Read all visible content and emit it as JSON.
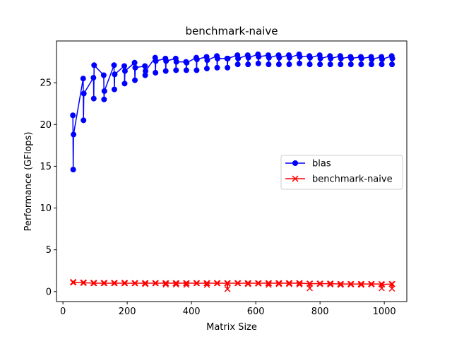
{
  "chart_data": {
    "type": "line",
    "title": "benchmark-naive",
    "xlabel": "Matrix Size",
    "ylabel": "Performance (GFlops)",
    "xlim": [
      -20,
      1070
    ],
    "ylim": [
      -1.2,
      30
    ],
    "xticks": [
      0,
      200,
      400,
      600,
      800,
      1000
    ],
    "yticks": [
      0,
      5,
      10,
      15,
      20,
      25
    ],
    "grid": false,
    "legend_position": "center-right",
    "series": [
      {
        "name": "blas",
        "color": "#0000ff",
        "marker": "circle",
        "x": [
          31,
          32,
          33,
          63,
          64,
          65,
          95,
          96,
          97,
          127,
          128,
          129,
          159,
          160,
          161,
          191,
          192,
          193,
          223,
          224,
          225,
          255,
          256,
          257,
          287,
          288,
          289,
          319,
          320,
          321,
          351,
          352,
          353,
          383,
          384,
          385,
          415,
          416,
          417,
          447,
          448,
          449,
          479,
          480,
          481,
          511,
          512,
          513,
          543,
          544,
          545,
          575,
          576,
          577,
          607,
          608,
          609,
          639,
          640,
          641,
          671,
          672,
          673,
          703,
          704,
          705,
          735,
          736,
          737,
          767,
          768,
          769,
          799,
          800,
          801,
          831,
          832,
          833,
          863,
          864,
          865,
          895,
          896,
          897,
          927,
          928,
          929,
          959,
          960,
          961,
          991,
          992,
          993,
          1023,
          1024,
          1025
        ],
        "y": [
          21.1,
          14.6,
          18.8,
          25.5,
          20.5,
          23.7,
          25.6,
          23.1,
          27.1,
          25.9,
          23.0,
          24.0,
          27.1,
          24.2,
          26.0,
          27.0,
          24.9,
          26.4,
          27.4,
          25.3,
          26.8,
          27.0,
          25.9,
          26.4,
          28.0,
          26.2,
          27.6,
          27.9,
          26.4,
          27.6,
          27.9,
          26.5,
          27.5,
          27.5,
          26.5,
          27.4,
          28.0,
          26.5,
          27.8,
          28.1,
          26.7,
          27.7,
          28.2,
          26.8,
          27.9,
          27.9,
          26.8,
          27.9,
          28.3,
          27.2,
          27.9,
          28.3,
          27.2,
          28.0,
          28.4,
          27.3,
          28.1,
          28.3,
          27.2,
          28.0,
          28.3,
          27.2,
          28.0,
          28.3,
          27.2,
          28.0,
          28.4,
          27.3,
          28.1,
          28.2,
          27.2,
          28.0,
          28.3,
          27.2,
          27.9,
          28.2,
          27.2,
          27.9,
          28.2,
          27.2,
          27.9,
          28.1,
          27.2,
          27.9,
          28.1,
          27.2,
          27.9,
          28.1,
          27.2,
          27.8,
          28.1,
          27.2,
          27.8,
          28.2,
          27.2,
          27.9
        ]
      },
      {
        "name": "benchmark-naive",
        "color": "#ff0000",
        "marker": "x",
        "x": [
          31,
          32,
          33,
          63,
          64,
          65,
          95,
          96,
          97,
          127,
          128,
          129,
          159,
          160,
          161,
          191,
          192,
          193,
          223,
          224,
          225,
          255,
          256,
          257,
          287,
          288,
          289,
          319,
          320,
          321,
          351,
          352,
          353,
          383,
          384,
          385,
          415,
          416,
          417,
          447,
          448,
          449,
          479,
          480,
          481,
          511,
          512,
          513,
          543,
          544,
          545,
          575,
          576,
          577,
          607,
          608,
          609,
          639,
          640,
          641,
          671,
          672,
          673,
          703,
          704,
          705,
          735,
          736,
          737,
          767,
          768,
          769,
          799,
          800,
          801,
          831,
          832,
          833,
          863,
          864,
          865,
          895,
          896,
          897,
          927,
          928,
          929,
          959,
          960,
          961,
          991,
          992,
          993,
          1023,
          1024,
          1025
        ],
        "y": [
          1.1,
          1.15,
          1.1,
          1.05,
          1.1,
          1.05,
          1.0,
          1.05,
          1.0,
          1.0,
          1.05,
          1.0,
          1.0,
          1.05,
          1.0,
          1.0,
          1.05,
          1.0,
          1.0,
          1.0,
          1.0,
          1.0,
          0.9,
          1.0,
          1.0,
          1.0,
          1.0,
          1.0,
          0.85,
          1.0,
          1.0,
          0.85,
          1.0,
          1.0,
          0.8,
          1.0,
          1.0,
          1.0,
          1.0,
          1.0,
          0.8,
          1.0,
          1.0,
          1.0,
          1.0,
          1.0,
          0.3,
          1.0,
          1.0,
          1.0,
          1.0,
          1.0,
          0.9,
          1.0,
          1.0,
          0.95,
          1.0,
          1.0,
          0.8,
          1.0,
          1.0,
          0.9,
          1.0,
          1.0,
          0.9,
          1.0,
          1.0,
          0.85,
          1.0,
          0.95,
          0.4,
          0.95,
          0.95,
          0.9,
          0.95,
          0.95,
          0.85,
          0.95,
          0.9,
          0.8,
          0.9,
          0.9,
          0.85,
          0.9,
          0.9,
          0.8,
          0.9,
          0.9,
          0.85,
          0.9,
          0.9,
          0.4,
          0.85,
          0.9,
          0.35,
          0.9
        ]
      }
    ]
  }
}
